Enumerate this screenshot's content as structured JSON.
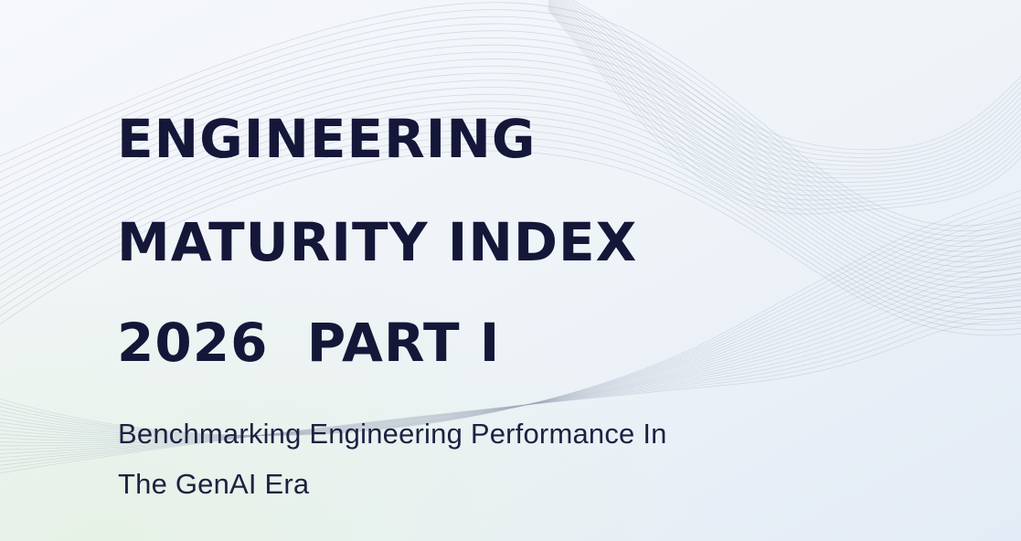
{
  "cover": {
    "title_lines": [
      "ENGINEERING",
      "MATURITY INDEX",
      "2026  PART I"
    ],
    "subtitle_lines": [
      "Benchmarking Engineering Performance In",
      "The GenAI Era"
    ]
  }
}
